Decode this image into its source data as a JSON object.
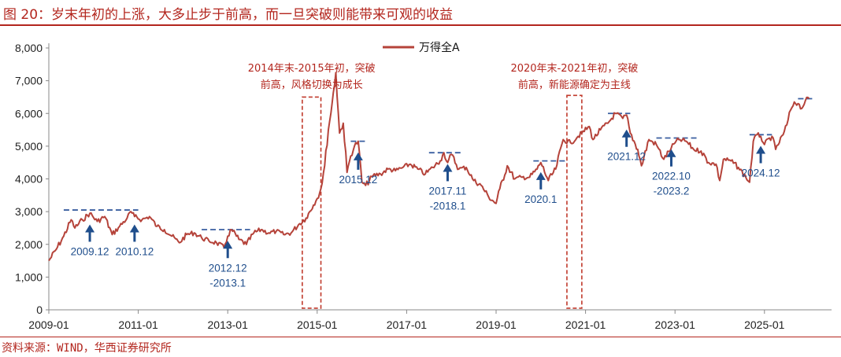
{
  "header": {
    "title": "图 20：岁末年初的上涨，大多止步于前高，而一旦突破则能带来可观的收益"
  },
  "footer": {
    "source": "资料来源：WIND，华西证券研究所"
  },
  "colors": {
    "series": "#b5433a",
    "accent": "#b3261e",
    "arrow": "#1f4e8c",
    "dash": "#3a5fa0",
    "box": "#c0392b"
  },
  "chart_data": {
    "type": "line",
    "title": "",
    "xlabel": "",
    "ylabel": "",
    "ylim": [
      0,
      8000
    ],
    "xlim": [
      "2009-01",
      "2026-07"
    ],
    "y_ticks": [
      "0",
      "1,000",
      "2,000",
      "3,000",
      "4,000",
      "5,000",
      "6,000",
      "7,000",
      "8,000"
    ],
    "x_ticks": [
      "2009-01",
      "2011-01",
      "2013-01",
      "2015-01",
      "2017-01",
      "2019-01",
      "2021-01",
      "2023-01",
      "2025-01"
    ],
    "legend": {
      "position": "top-center",
      "entries": [
        "万得全A"
      ]
    },
    "grid": false,
    "series": [
      {
        "name": "万得全A",
        "points": [
          [
            "2009-01",
            1500
          ],
          [
            "2009-03",
            1850
          ],
          [
            "2009-05",
            2250
          ],
          [
            "2009-07",
            2750
          ],
          [
            "2009-08",
            2500
          ],
          [
            "2009-10",
            2750
          ],
          [
            "2009-12",
            2950
          ],
          [
            "2010-02",
            2700
          ],
          [
            "2010-04",
            2850
          ],
          [
            "2010-06",
            2300
          ],
          [
            "2010-08",
            2550
          ],
          [
            "2010-10",
            2800
          ],
          [
            "2010-11",
            3000
          ],
          [
            "2010-12",
            2850
          ],
          [
            "2011-02",
            2750
          ],
          [
            "2011-04",
            2850
          ],
          [
            "2011-06",
            2550
          ],
          [
            "2011-08",
            2450
          ],
          [
            "2011-10",
            2250
          ],
          [
            "2011-12",
            2050
          ],
          [
            "2012-02",
            2300
          ],
          [
            "2012-04",
            2350
          ],
          [
            "2012-06",
            2200
          ],
          [
            "2012-08",
            2100
          ],
          [
            "2012-10",
            2050
          ],
          [
            "2012-12",
            1900
          ],
          [
            "2013-01",
            2250
          ],
          [
            "2013-02",
            2450
          ],
          [
            "2013-04",
            2150
          ],
          [
            "2013-06",
            2000
          ],
          [
            "2013-08",
            2350
          ],
          [
            "2013-10",
            2450
          ],
          [
            "2013-12",
            2350
          ],
          [
            "2014-02",
            2400
          ],
          [
            "2014-04",
            2300
          ],
          [
            "2014-06",
            2350
          ],
          [
            "2014-08",
            2600
          ],
          [
            "2014-10",
            2800
          ],
          [
            "2014-12",
            3200
          ],
          [
            "2015-01",
            3400
          ],
          [
            "2015-02",
            3700
          ],
          [
            "2015-03",
            4400
          ],
          [
            "2015-04",
            5500
          ],
          [
            "2015-05",
            6300
          ],
          [
            "2015-06",
            7250
          ],
          [
            "2015-07",
            5400
          ],
          [
            "2015-08",
            5700
          ],
          [
            "2015-09",
            4200
          ],
          [
            "2015-10",
            4700
          ],
          [
            "2015-11",
            5000
          ],
          [
            "2015-12",
            5150
          ],
          [
            "2016-01",
            3900
          ],
          [
            "2016-02",
            3800
          ],
          [
            "2016-04",
            4100
          ],
          [
            "2016-06",
            4150
          ],
          [
            "2016-08",
            4300
          ],
          [
            "2016-10",
            4250
          ],
          [
            "2016-12",
            4350
          ],
          [
            "2017-02",
            4450
          ],
          [
            "2017-04",
            4300
          ],
          [
            "2017-06",
            4150
          ],
          [
            "2017-08",
            4350
          ],
          [
            "2017-10",
            4550
          ],
          [
            "2017-11",
            4800
          ],
          [
            "2017-12",
            4500
          ],
          [
            "2018-01",
            4750
          ],
          [
            "2018-03",
            4300
          ],
          [
            "2018-05",
            4350
          ],
          [
            "2018-07",
            3950
          ],
          [
            "2018-09",
            3800
          ],
          [
            "2018-11",
            3450
          ],
          [
            "2019-01",
            3250
          ],
          [
            "2019-02",
            3700
          ],
          [
            "2019-04",
            4400
          ],
          [
            "2019-06",
            4000
          ],
          [
            "2019-08",
            4050
          ],
          [
            "2019-10",
            4050
          ],
          [
            "2019-12",
            4300
          ],
          [
            "2020-01",
            4500
          ],
          [
            "2020-03",
            3950
          ],
          [
            "2020-05",
            4300
          ],
          [
            "2020-07",
            5200
          ],
          [
            "2020-09",
            5100
          ],
          [
            "2020-11",
            5300
          ],
          [
            "2020-12",
            5400
          ],
          [
            "2021-02",
            5600
          ],
          [
            "2021-03",
            5200
          ],
          [
            "2021-05",
            5500
          ],
          [
            "2021-07",
            5700
          ],
          [
            "2021-09",
            6000
          ],
          [
            "2021-11",
            5850
          ],
          [
            "2021-12",
            5950
          ],
          [
            "2022-01",
            5400
          ],
          [
            "2022-03",
            4900
          ],
          [
            "2022-04",
            4400
          ],
          [
            "2022-06",
            5200
          ],
          [
            "2022-08",
            5050
          ],
          [
            "2022-10",
            4600
          ],
          [
            "2022-12",
            4950
          ],
          [
            "2023-01",
            5100
          ],
          [
            "2023-02",
            5200
          ],
          [
            "2023-04",
            5150
          ],
          [
            "2023-06",
            4900
          ],
          [
            "2023-08",
            4850
          ],
          [
            "2023-10",
            4500
          ],
          [
            "2023-12",
            4450
          ],
          [
            "2024-01",
            3950
          ],
          [
            "2024-02",
            4600
          ],
          [
            "2024-04",
            4550
          ],
          [
            "2024-06",
            4350
          ],
          [
            "2024-08",
            4050
          ],
          [
            "2024-09",
            3900
          ],
          [
            "2024-10",
            5150
          ],
          [
            "2024-11",
            5350
          ],
          [
            "2024-12",
            5300
          ],
          [
            "2025-01",
            5050
          ],
          [
            "2025-03",
            5300
          ],
          [
            "2025-04",
            4900
          ],
          [
            "2025-06",
            5350
          ],
          [
            "2025-07",
            5650
          ],
          [
            "2025-08",
            6100
          ],
          [
            "2025-09",
            6350
          ],
          [
            "2025-10",
            6300
          ],
          [
            "2025-11",
            6150
          ],
          [
            "2025-12",
            6400
          ],
          [
            "2026-01",
            6450
          ]
        ]
      }
    ],
    "resistance_lines": [
      {
        "start": "2009-05",
        "end": "2011-01",
        "value": 3050
      },
      {
        "start": "2012-06",
        "end": "2013-07",
        "value": 2450
      },
      {
        "start": "2015-10",
        "end": "2016-02",
        "value": 5150
      },
      {
        "start": "2017-07",
        "end": "2018-04",
        "value": 4800
      },
      {
        "start": "2019-11",
        "end": "2020-08",
        "value": 4550
      },
      {
        "start": "2021-07",
        "end": "2022-01",
        "value": 6000
      },
      {
        "start": "2022-08",
        "end": "2023-07",
        "value": 5250
      },
      {
        "start": "2024-09",
        "end": "2025-03",
        "value": 5350
      },
      {
        "start": "2025-10",
        "end": "2026-02",
        "value": 6450
      }
    ],
    "event_markers": [
      {
        "label": "2009.12",
        "date": "2009-12",
        "value": 2800
      },
      {
        "label": "2010.12",
        "date": "2010-12",
        "value": 2800
      },
      {
        "label": "2012.12\n-2013.1",
        "date": "2013-01",
        "value": 2300
      },
      {
        "label": "2015.12",
        "date": "2015-12",
        "value": 5000
      },
      {
        "label": "2017.11\n-2018.1",
        "date": "2017-12",
        "value": 4650
      },
      {
        "label": "2020.1",
        "date": "2020-01",
        "value": 4400
      },
      {
        "label": "2021.12",
        "date": "2021-12",
        "value": 5700
      },
      {
        "label": "2022.10\n-2023.2",
        "date": "2022-12",
        "value": 5100
      },
      {
        "label": "2024.12",
        "date": "2024-12",
        "value": 5200
      }
    ],
    "highlight_boxes": [
      {
        "start": "2014-09",
        "end": "2015-02",
        "low": 50,
        "high": 6500,
        "annotation": [
          "2014年末-2015年初，突破",
          "前高，风格切换为成长"
        ]
      },
      {
        "start": "2020-08",
        "end": "2020-12",
        "low": 50,
        "high": 6550,
        "annotation": [
          "2020年末-2021年初，突破",
          "前高，新能源确定为主线"
        ]
      }
    ]
  }
}
